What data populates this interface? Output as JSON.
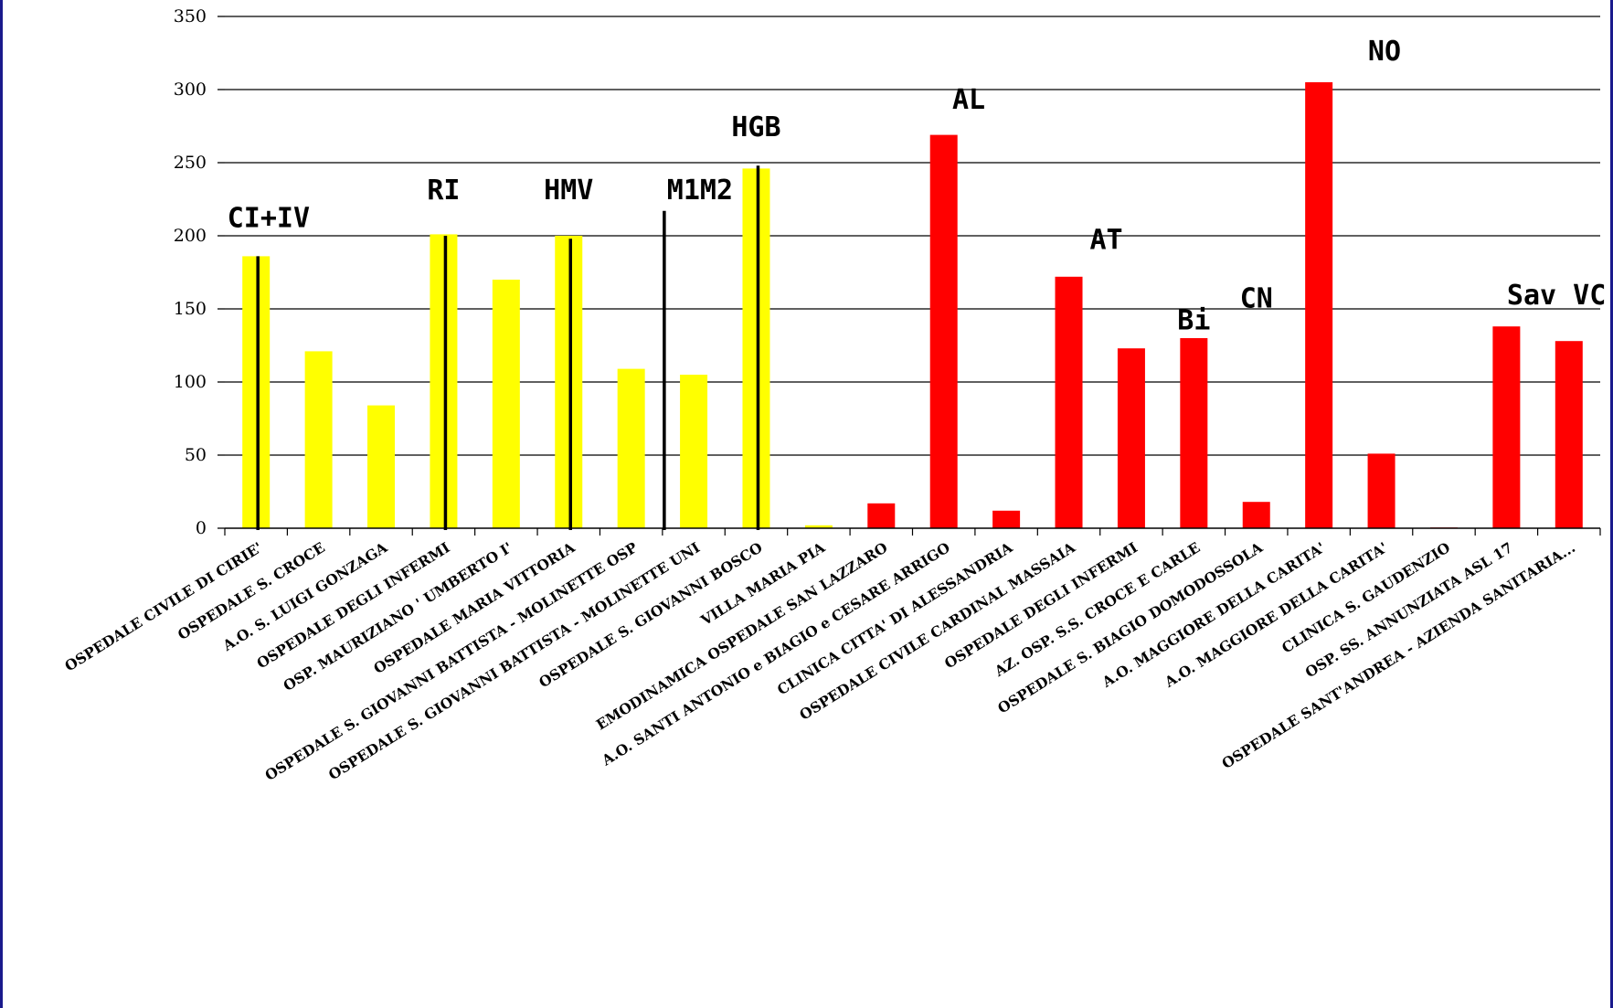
{
  "chart_data": {
    "type": "bar",
    "title": "",
    "xlabel": "",
    "ylabel": "",
    "ylim": [
      0,
      350
    ],
    "y_ticks": [
      0,
      50,
      100,
      150,
      200,
      250,
      300,
      350
    ],
    "grid": true,
    "legend": "none",
    "categories": [
      "OSPEDALE CIVILE DI CIRIE'",
      "OSPEDALE S. CROCE",
      "A.O. S. LUIGI GONZAGA",
      "OSPEDALE DEGLI INFERMI",
      "OSP. MAURIZIANO ' UMBERTO I'",
      "OSPEDALE MARIA VITTORIA",
      "OSPEDALE S. GIOVANNI BATTISTA - MOLINETTE OSP",
      "OSPEDALE S. GIOVANNI BATTISTA - MOLINETTE UNI",
      "OSPEDALE S. GIOVANNI BOSCO",
      "VILLA MARIA PIA",
      "EMODINAMICA OSPEDALE SAN LAZZARO",
      "A.O. SANTI ANTONIO e BIAGIO e CESARE ARRIGO",
      "CLINICA CITTA' DI ALESSANDRIA",
      "OSPEDALE CIVILE CARDINAL MASSAIA",
      "OSPEDALE DEGLI INFERMI",
      "AZ. OSP. S.S. CROCE E CARLE",
      "OSPEDALE S. BIAGIO DOMODOSSOLA",
      "A.O. MAGGIORE DELLA CARITA'",
      "A.O. MAGGIORE DELLA CARITA'",
      "CLINICA S. GAUDENZIO",
      "OSP. SS. ANNUNZIATA ASL 17",
      "OSPEDALE SANT'ANDREA - AZIENDA SANITARIA..."
    ],
    "values": [
      186,
      121,
      84,
      201,
      170,
      200,
      109,
      105,
      246,
      2,
      17,
      269,
      12,
      172,
      123,
      130,
      18,
      305,
      51,
      0.5,
      138,
      128
    ],
    "bar_colors": [
      "#ffff00",
      "#ffff00",
      "#ffff00",
      "#ffff00",
      "#ffff00",
      "#ffff00",
      "#ffff00",
      "#ffff00",
      "#ffff00",
      "#ffff00",
      "#ff0000",
      "#ff0000",
      "#ff0000",
      "#ff0000",
      "#ff0000",
      "#ff0000",
      "#ff0000",
      "#ff0000",
      "#ff0000",
      "#ff0000",
      "#ff0000",
      "#ff0000"
    ],
    "marker_lines": [
      {
        "category_index": 0,
        "top_value": 186
      },
      {
        "category_index": 3,
        "top_value": 200
      },
      {
        "category_index": 5,
        "top_value": 198
      },
      {
        "category_index": 6.5,
        "top_value": 217
      },
      {
        "category_index": 8,
        "top_value": 248
      }
    ],
    "annotations": [
      {
        "text": "CI+IV",
        "category_index": 0.2,
        "value": 206
      },
      {
        "text": "RI",
        "category_index": 3,
        "value": 225
      },
      {
        "text": "HMV",
        "category_index": 5,
        "value": 225
      },
      {
        "text": "M1M2",
        "category_index": 7.1,
        "value": 225
      },
      {
        "text": "HGB",
        "category_index": 8,
        "value": 268
      },
      {
        "text": "AL",
        "category_index": 11.4,
        "value": 287
      },
      {
        "text": "AT",
        "category_index": 13.6,
        "value": 191
      },
      {
        "text": "Bi",
        "category_index": 15,
        "value": 136
      },
      {
        "text": "CN",
        "category_index": 16,
        "value": 151
      },
      {
        "text": "NO",
        "category_index": 18.05,
        "value": 320
      },
      {
        "text": "Sav VC",
        "category_index": 20.8,
        "value": 153
      }
    ]
  }
}
